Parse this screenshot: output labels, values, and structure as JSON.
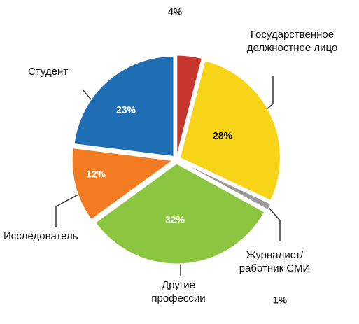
{
  "chart_data": {
    "type": "pie",
    "categories": [
      null,
      "Государственное должностное лицо",
      "Журналист/ работник СМИ",
      "Другие профессии",
      "Исследователь",
      "Студент"
    ],
    "values": [
      4,
      28,
      1,
      32,
      12,
      23
    ],
    "value_labels": [
      "4%",
      "28%",
      "1%",
      "32%",
      "12%",
      "23%"
    ],
    "colors": [
      "#c8372d",
      "#f7d417",
      "#9a9a9a",
      "#8cc540",
      "#f37c22",
      "#1f6db3"
    ]
  }
}
